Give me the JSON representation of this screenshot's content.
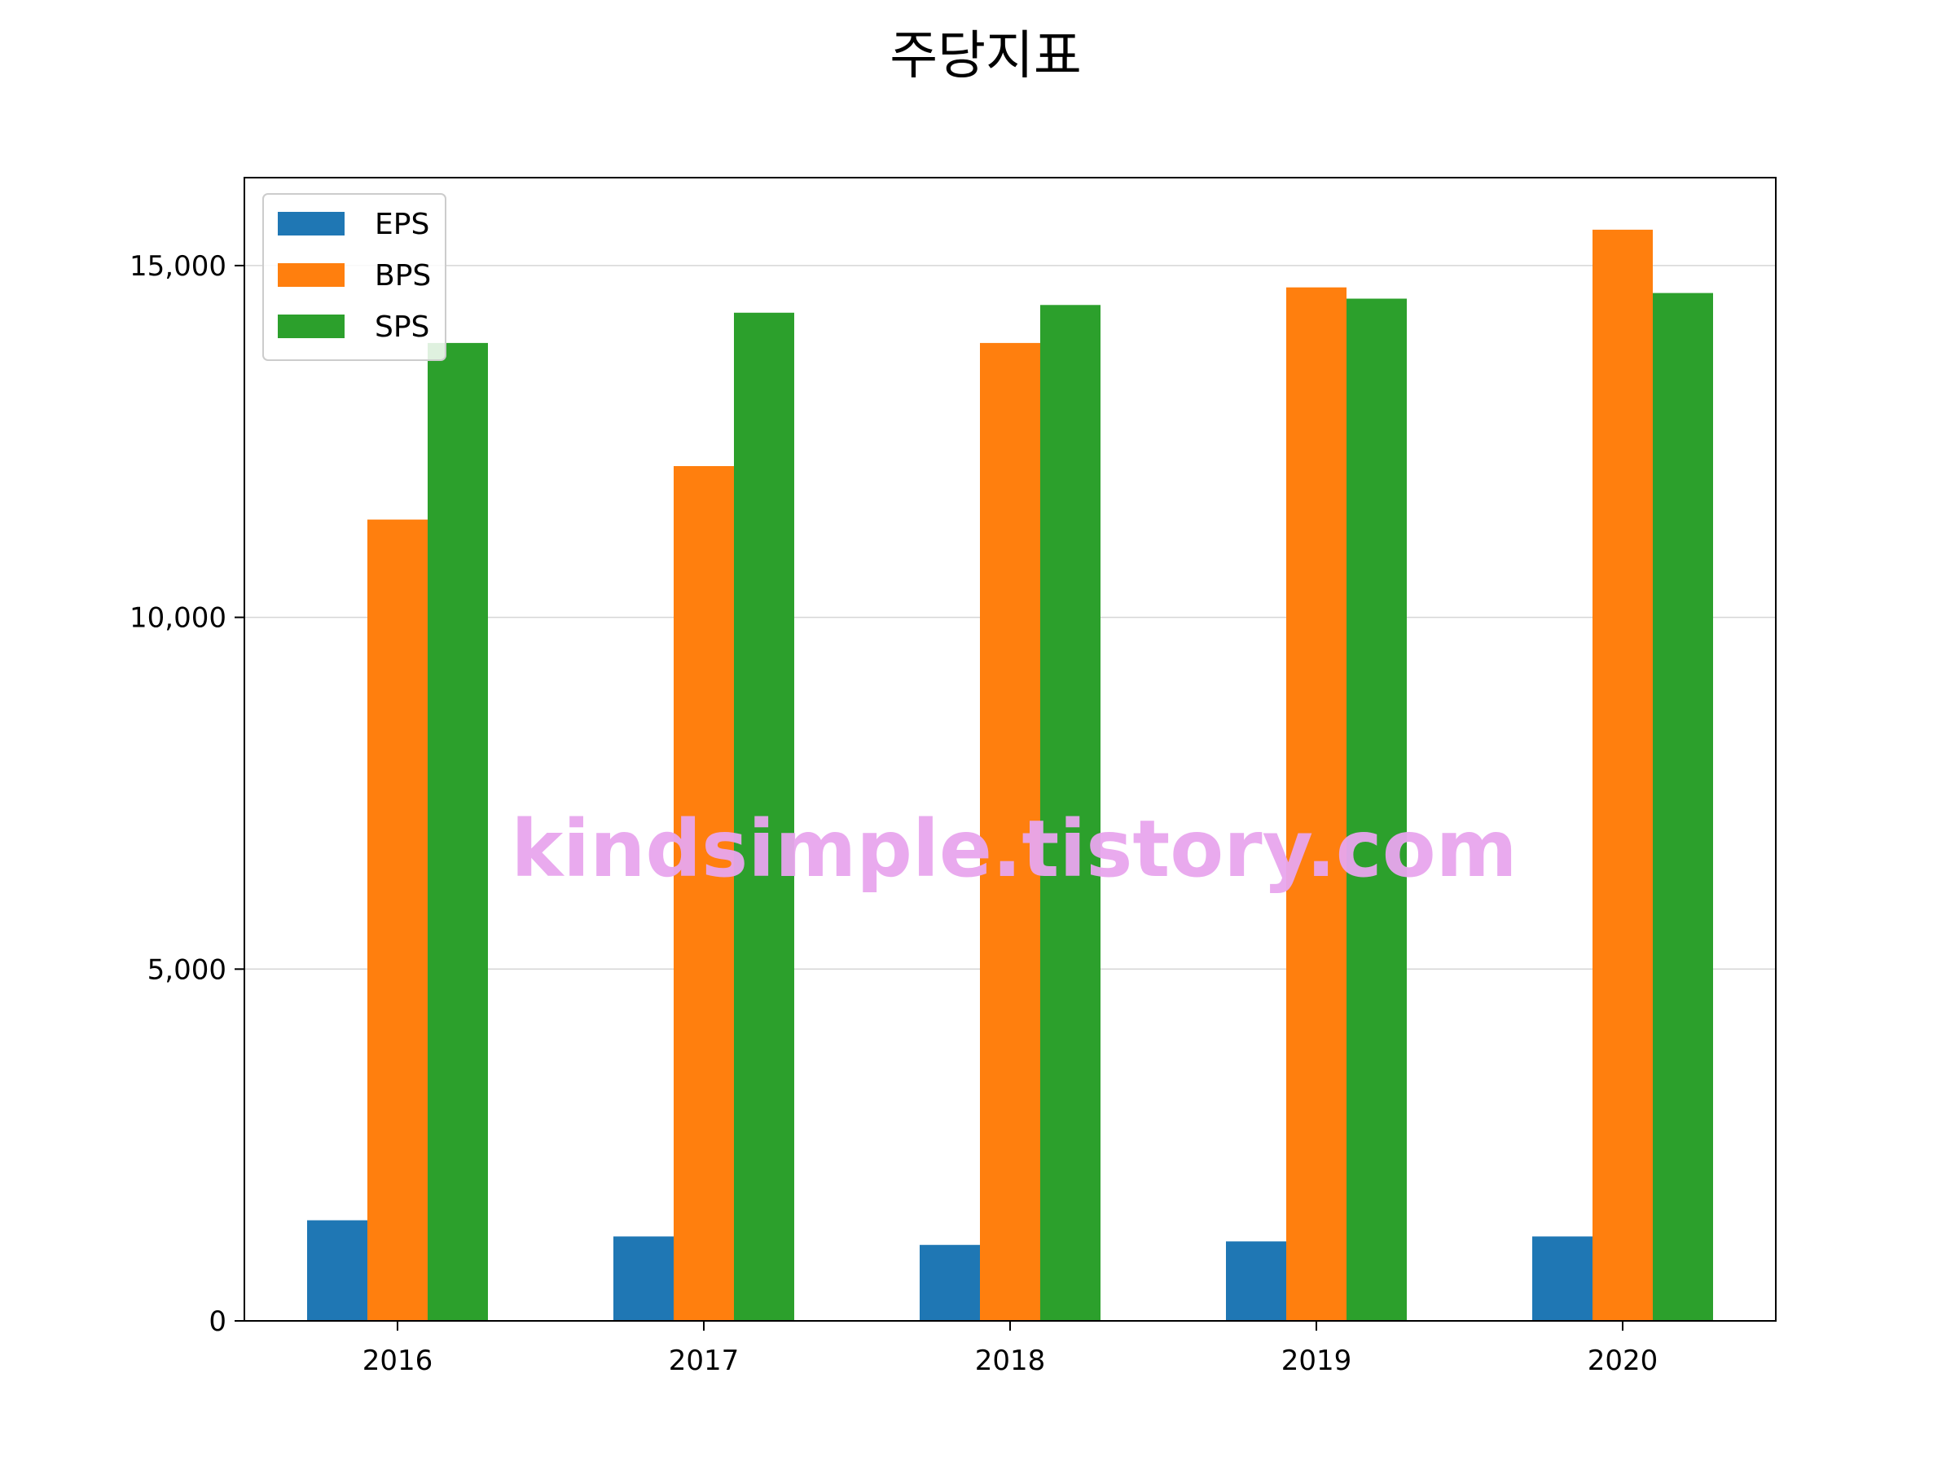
{
  "chart_data": {
    "type": "bar",
    "title": "주당지표",
    "xlabel": "",
    "ylabel": "",
    "categories": [
      "2016",
      "2017",
      "2018",
      "2019",
      "2020"
    ],
    "series": [
      {
        "name": "EPS",
        "color": "#1f77b4",
        "values": [
          1430,
          1200,
          1080,
          1130,
          1200
        ]
      },
      {
        "name": "BPS",
        "color": "#ff7f0e",
        "values": [
          11390,
          12150,
          13900,
          14690,
          15510
        ]
      },
      {
        "name": "SPS",
        "color": "#2ca02c",
        "values": [
          13900,
          14330,
          14440,
          14530,
          14610
        ]
      }
    ],
    "ylim": [
      0,
      16250
    ],
    "yticks": [
      0,
      5000,
      10000,
      15000
    ],
    "ytick_labels": [
      "0",
      "5,000",
      "10,000",
      "15,000"
    ],
    "grid": "horizontal",
    "legend_position": "top-left"
  },
  "watermark": {
    "text": "kindsimple.tistory.com",
    "color": "#e8a6ee"
  }
}
